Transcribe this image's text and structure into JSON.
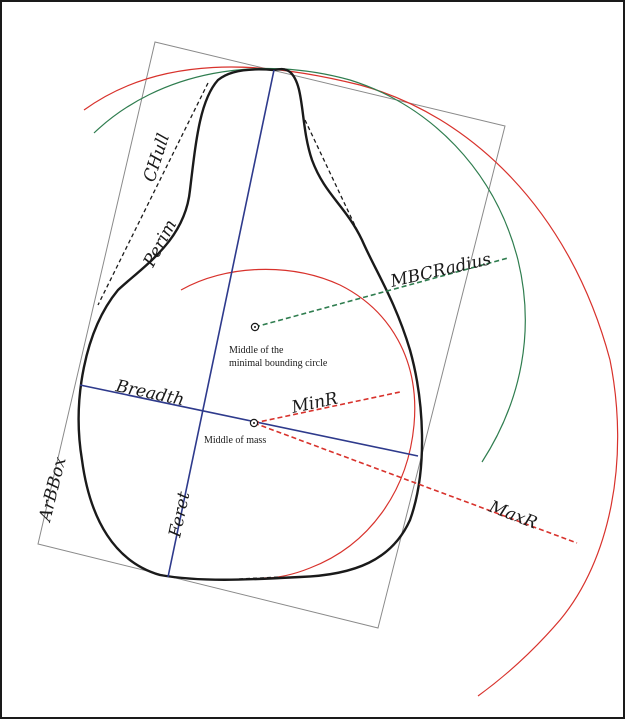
{
  "labels": {
    "chull": "CHull",
    "perim": "Perim",
    "mbcradius": "MBCRadius",
    "breadth": "Breadth",
    "minr": "MinR",
    "feret": "Feret",
    "maxr": "MaxR",
    "arbbox": "ArBBox"
  },
  "notes": {
    "mbc_center_line1": "Middle of the",
    "mbc_center_line2": "minimal bounding circle",
    "mass_center": "Middle of mass"
  },
  "colors": {
    "outline": "#1a1a1a",
    "axis_blue": "#2e3a8c",
    "red": "#d8322c",
    "green": "#2f7d4f",
    "box_gray": "#8a8a8a"
  }
}
